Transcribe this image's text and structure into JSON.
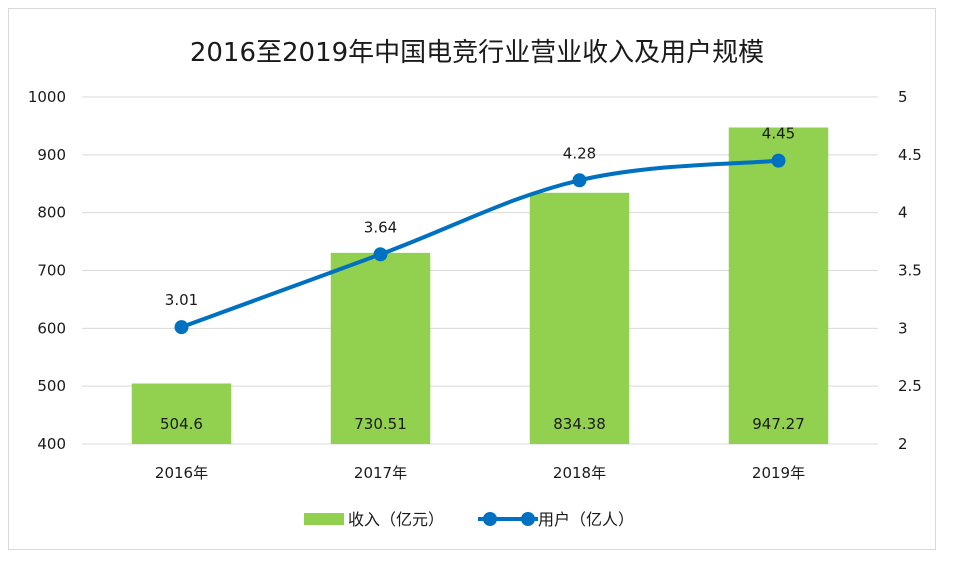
{
  "chart_data": {
    "type": "bar+line",
    "title": "2016至2019年中国电竞行业营业收入及用户规模",
    "categories": [
      "2016年",
      "2017年",
      "2018年",
      "2019年"
    ],
    "series": [
      {
        "name": "收入（亿元）",
        "type": "bar",
        "axis": "left",
        "color": "#92d050",
        "values": [
          504.6,
          730.51,
          834.38,
          947.27
        ],
        "labels": [
          "504.6",
          "730.51",
          "834.38",
          "947.27"
        ]
      },
      {
        "name": "用户（亿人）",
        "type": "line",
        "axis": "right",
        "color": "#0070c0",
        "values": [
          3.01,
          3.64,
          4.28,
          4.45
        ],
        "labels": [
          "3.01",
          "3.64",
          "4.28",
          "4.45"
        ]
      }
    ],
    "y_left": {
      "min": 400,
      "max": 1000,
      "ticks": [
        "400",
        "500",
        "600",
        "700",
        "800",
        "900",
        "1000"
      ]
    },
    "y_right": {
      "min": 2,
      "max": 5,
      "ticks": [
        "2",
        "2.5",
        "3",
        "3.5",
        "4",
        "4.5",
        "5"
      ]
    },
    "grid": true,
    "legend_position": "bottom"
  }
}
